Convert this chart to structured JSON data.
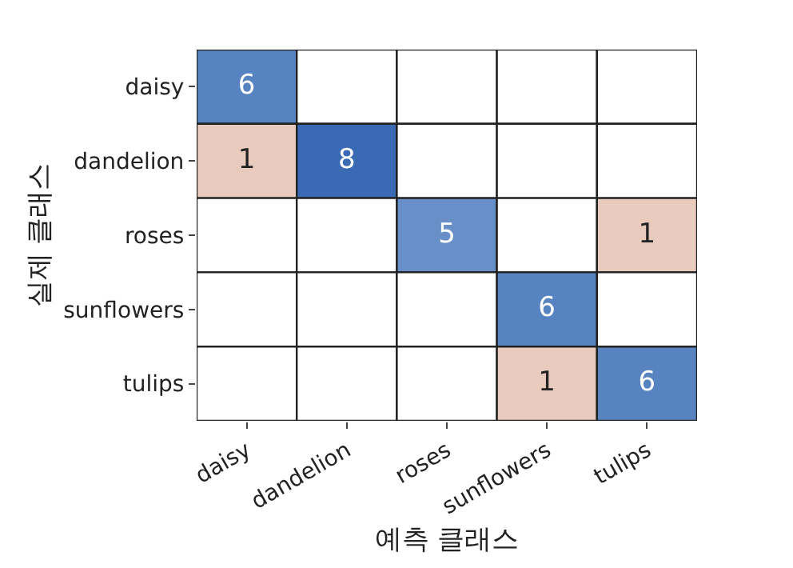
{
  "chart_data": {
    "type": "heatmap",
    "xlabel": "예측 클래스",
    "ylabel": "실제 클래스",
    "categories": [
      "daisy",
      "dandelion",
      "roses",
      "sunflowers",
      "tulips"
    ],
    "y_categories": [
      "daisy",
      "dandelion",
      "roses",
      "sunflowers",
      "tulips"
    ],
    "cells": [
      [
        6,
        null,
        null,
        null,
        null
      ],
      [
        1,
        8,
        null,
        null,
        null
      ],
      [
        null,
        null,
        5,
        null,
        1
      ],
      [
        null,
        null,
        null,
        6,
        null
      ],
      [
        null,
        null,
        null,
        1,
        6
      ]
    ],
    "data_labels": true
  }
}
